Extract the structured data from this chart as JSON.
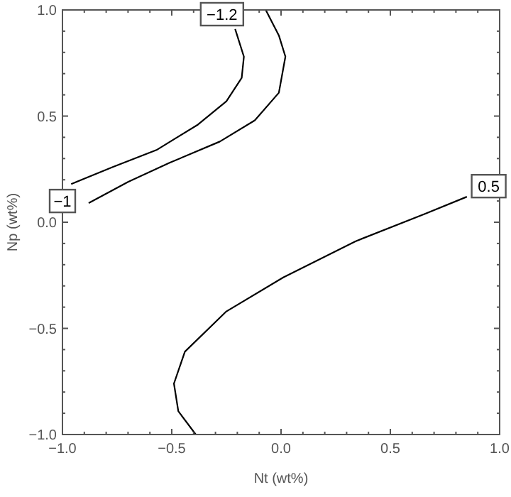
{
  "chart_data": {
    "type": "line",
    "xlabel": "Nt (wt%)",
    "ylabel": "Np (wt%)",
    "xlim": [
      -1,
      1
    ],
    "ylim": [
      -1,
      1
    ],
    "xticks": [
      {
        "value": -1,
        "label": "−1.0"
      },
      {
        "value": -0.5,
        "label": "−0.5"
      },
      {
        "value": 0,
        "label": "0.0"
      },
      {
        "value": 0.5,
        "label": "0.5"
      },
      {
        "value": 1,
        "label": "1.0"
      }
    ],
    "yticks": [
      {
        "value": -1,
        "label": "−1.0"
      },
      {
        "value": -0.5,
        "label": "−0.5"
      },
      {
        "value": 0,
        "label": "0.0"
      },
      {
        "value": 0.5,
        "label": "0.5"
      },
      {
        "value": 1,
        "label": "1.0"
      }
    ],
    "grid": false,
    "marker": "none",
    "line_style": "solid",
    "series": [
      {
        "color": "#000000",
        "x": [
          -0.21,
          -0.17,
          -0.18,
          -0.25,
          -0.38,
          -0.57,
          -0.77,
          -0.96
        ],
        "values": [
          0.91,
          0.78,
          0.68,
          0.57,
          0.46,
          0.34,
          0.26,
          0.18
        ]
      },
      {
        "color": "#000000",
        "x": [
          -0.07,
          -0.01,
          0.02,
          -0.01,
          -0.12,
          -0.28,
          -0.51,
          -0.7,
          -0.88
        ],
        "values": [
          1.0,
          0.88,
          0.78,
          0.61,
          0.48,
          0.38,
          0.28,
          0.19,
          0.09
        ]
      },
      {
        "color": "#000000",
        "x": [
          0.85,
          0.66,
          0.34,
          0.01,
          -0.25,
          -0.44,
          -0.49,
          -0.47,
          -0.39
        ],
        "values": [
          0.12,
          0.04,
          -0.09,
          -0.26,
          -0.42,
          -0.61,
          -0.76,
          -0.89,
          -1.0
        ]
      }
    ],
    "annotations": [
      {
        "text": "−1.2",
        "x": -0.27,
        "y": 0.99
      },
      {
        "text": "−1",
        "x": -1.0,
        "y": 0.1
      },
      {
        "text": "0.5",
        "x": 0.95,
        "y": 0.17
      }
    ]
  }
}
